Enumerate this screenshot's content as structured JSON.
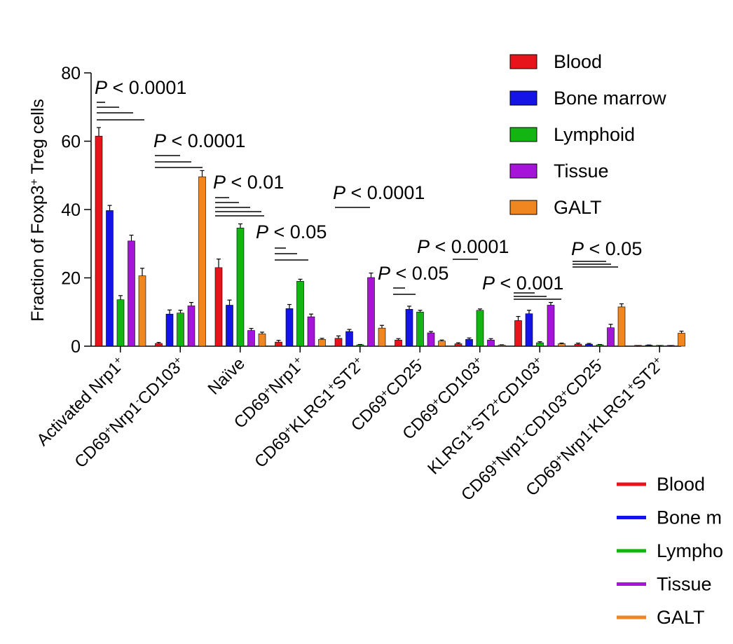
{
  "chart_data": {
    "type": "bar",
    "ylabel": "Fraction of Foxp3⁺ Treg cells",
    "ylim": [
      0,
      80
    ],
    "yticks": [
      "0",
      "20",
      "40",
      "60",
      "80"
    ],
    "categories": [
      "Activated Nrp1⁺",
      "CD69⁺Nrp1⁻CD103⁺",
      "Naïve",
      "CD69⁺Nrp1⁺",
      "CD69⁺KLRG1⁺ST2⁺",
      "CD69⁺CD25⁻",
      "CD69⁺CD103⁺",
      "KLRG1⁺ST2⁺CD103⁺",
      "CD69⁺Nrp1⁻CD103⁺CD25⁻",
      "CD69⁺Nrp1⁻KLRG1⁺ST2⁺"
    ],
    "series": [
      {
        "name": "Blood",
        "color": "#e8141b",
        "values": [
          61.5,
          0.8,
          23,
          1.2,
          2.3,
          1.8,
          0.7,
          7.5,
          0.6,
          0.1
        ],
        "errors": [
          2.5,
          0.3,
          2.5,
          0.5,
          0.7,
          0.4,
          0.3,
          1.2,
          0.3,
          0.05
        ]
      },
      {
        "name": "Bone marrow",
        "color": "#1414e6",
        "values": [
          39.7,
          9.4,
          12,
          11,
          4.3,
          10.8,
          2,
          9.5,
          0.6,
          0.3
        ],
        "errors": [
          1.5,
          1.2,
          1.5,
          1.2,
          0.6,
          0.9,
          0.4,
          1,
          0.2,
          0.05
        ]
      },
      {
        "name": "Lymphoid",
        "color": "#12b512",
        "values": [
          13.6,
          9.7,
          34.6,
          19,
          0.4,
          10,
          10.5,
          1,
          0.4,
          0.05
        ],
        "errors": [
          1.2,
          0.8,
          1.2,
          0.6,
          0.1,
          0.5,
          0.4,
          0.3,
          0.1,
          0.02
        ]
      },
      {
        "name": "Tissue",
        "color": "#a614d9",
        "values": [
          30.8,
          11.8,
          4.6,
          8.6,
          20.1,
          3.9,
          1.8,
          12,
          5.4,
          0.05
        ],
        "errors": [
          1.7,
          1,
          0.6,
          0.8,
          1.3,
          0.4,
          0.4,
          0.8,
          1,
          0.02
        ]
      },
      {
        "name": "GALT",
        "color": "#f0861f",
        "values": [
          20.6,
          49.6,
          3.6,
          2,
          5.3,
          1.5,
          0.3,
          0.7,
          11.5,
          3.8
        ],
        "errors": [
          2.2,
          1.8,
          0.5,
          0.3,
          0.8,
          0.3,
          0.1,
          0.2,
          0.9,
          0.6
        ]
      }
    ],
    "legend_position": "top-right",
    "annotations": [
      {
        "group": 0,
        "text": "P < 0.0001"
      },
      {
        "group": 1,
        "text": "P < 0.0001"
      },
      {
        "group": 2,
        "text": "P < 0.01"
      },
      {
        "group": 3,
        "text": "P < 0.05"
      },
      {
        "group": 4,
        "text": "P < 0.0001"
      },
      {
        "group": 5,
        "text": "P < 0.05"
      },
      {
        "group": 6,
        "text": "P < 0.0001"
      },
      {
        "group": 7,
        "text": "P < 0.001"
      },
      {
        "group": 8,
        "text": "P < 0.05"
      }
    ]
  },
  "legend2": {
    "items": [
      "Blood",
      "Bone m",
      "Lympho",
      "Tissue",
      "GALT"
    ]
  }
}
